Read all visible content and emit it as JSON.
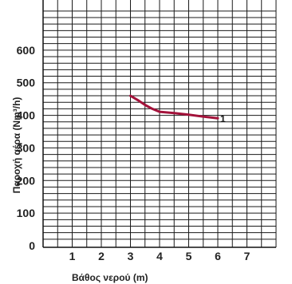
{
  "chart_data": {
    "type": "line",
    "title": "",
    "xlabel": "Βάθος νερού (m)",
    "ylabel": "Παροχή αέρα (Nm³/h)",
    "xlim": [
      0,
      8
    ],
    "ylim": [
      0,
      700
    ],
    "x_ticks": [
      "1",
      "2",
      "3",
      "4",
      "5",
      "6",
      "7"
    ],
    "y_ticks": [
      "0",
      "100",
      "200",
      "300",
      "400",
      "500",
      "600"
    ],
    "grid": true,
    "series": [
      {
        "name": "1",
        "color": "#a3123a",
        "x": [
          3.0,
          3.25,
          3.5,
          3.75,
          4.0,
          4.5,
          5.0,
          5.5,
          6.0
        ],
        "y": [
          460,
          447,
          432,
          420,
          411,
          407,
          402,
          396,
          391
        ]
      }
    ]
  }
}
